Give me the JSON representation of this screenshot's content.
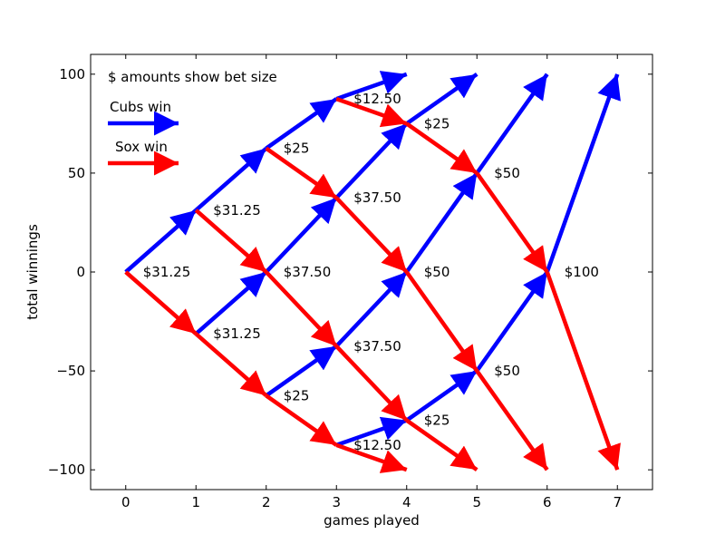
{
  "chart_data": {
    "type": "line",
    "title": "",
    "xlabel": "games played",
    "ylabel": "total winnings",
    "xlim": [
      -0.5,
      7.5
    ],
    "ylim": [
      -110,
      110
    ],
    "x_ticks": [
      0,
      1,
      2,
      3,
      4,
      5,
      6,
      7
    ],
    "y_ticks": [
      100,
      50,
      0,
      -50,
      -100
    ],
    "y_tick_labels": [
      "100",
      "50",
      "0",
      "−50",
      "−100"
    ],
    "grid": false,
    "note": "$ amounts show bet size",
    "legend": [
      {
        "label": "Cubs win",
        "color": "#0000ff"
      },
      {
        "label": "Sox win",
        "color": "#ff0000"
      }
    ],
    "series": [
      {
        "name": "Cubs win",
        "color": "#0000ff",
        "segments": [
          [
            [
              0,
              0
            ],
            [
              1,
              31.25
            ]
          ],
          [
            [
              1,
              31.25
            ],
            [
              2,
              62.5
            ]
          ],
          [
            [
              1,
              -31.25
            ],
            [
              2,
              0
            ]
          ],
          [
            [
              2,
              62.5
            ],
            [
              3,
              87.5
            ]
          ],
          [
            [
              2,
              0
            ],
            [
              3,
              37.5
            ]
          ],
          [
            [
              2,
              -62.5
            ],
            [
              3,
              -37.5
            ]
          ],
          [
            [
              3,
              87.5
            ],
            [
              4,
              100
            ]
          ],
          [
            [
              3,
              37.5
            ],
            [
              4,
              75
            ]
          ],
          [
            [
              3,
              -37.5
            ],
            [
              4,
              0
            ]
          ],
          [
            [
              3,
              -87.5
            ],
            [
              4,
              -75
            ]
          ],
          [
            [
              4,
              75
            ],
            [
              5,
              100
            ]
          ],
          [
            [
              4,
              0
            ],
            [
              5,
              50
            ]
          ],
          [
            [
              4,
              -75
            ],
            [
              5,
              -50
            ]
          ],
          [
            [
              5,
              50
            ],
            [
              6,
              100
            ]
          ],
          [
            [
              5,
              -50
            ],
            [
              6,
              0
            ]
          ],
          [
            [
              6,
              0
            ],
            [
              7,
              100
            ]
          ]
        ]
      },
      {
        "name": "Sox win",
        "color": "#ff0000",
        "segments": [
          [
            [
              0,
              0
            ],
            [
              1,
              -31.25
            ]
          ],
          [
            [
              1,
              31.25
            ],
            [
              2,
              0
            ]
          ],
          [
            [
              1,
              -31.25
            ],
            [
              2,
              -62.5
            ]
          ],
          [
            [
              2,
              62.5
            ],
            [
              3,
              37.5
            ]
          ],
          [
            [
              2,
              0
            ],
            [
              3,
              -37.5
            ]
          ],
          [
            [
              2,
              -62.5
            ],
            [
              3,
              -87.5
            ]
          ],
          [
            [
              3,
              87.5
            ],
            [
              4,
              75
            ]
          ],
          [
            [
              3,
              37.5
            ],
            [
              4,
              0
            ]
          ],
          [
            [
              3,
              -37.5
            ],
            [
              4,
              -75
            ]
          ],
          [
            [
              3,
              -87.5
            ],
            [
              4,
              -100
            ]
          ],
          [
            [
              4,
              75
            ],
            [
              5,
              50
            ]
          ],
          [
            [
              4,
              0
            ],
            [
              5,
              -50
            ]
          ],
          [
            [
              4,
              -75
            ],
            [
              5,
              -100
            ]
          ],
          [
            [
              5,
              50
            ],
            [
              6,
              0
            ]
          ],
          [
            [
              5,
              -50
            ],
            [
              6,
              -100
            ]
          ],
          [
            [
              6,
              0
            ],
            [
              7,
              -100
            ]
          ]
        ]
      }
    ],
    "bet_labels": [
      {
        "x": 0,
        "y": 0,
        "text": "$31.25"
      },
      {
        "x": 1,
        "y": 31.25,
        "text": "$31.25"
      },
      {
        "x": 1,
        "y": -31.25,
        "text": "$31.25"
      },
      {
        "x": 2,
        "y": 62.5,
        "text": "$25"
      },
      {
        "x": 2,
        "y": 0,
        "text": "$37.50"
      },
      {
        "x": 2,
        "y": -62.5,
        "text": "$25"
      },
      {
        "x": 3,
        "y": 87.5,
        "text": "$12.50"
      },
      {
        "x": 3,
        "y": 37.5,
        "text": "$37.50"
      },
      {
        "x": 3,
        "y": -37.5,
        "text": "$37.50"
      },
      {
        "x": 3,
        "y": -87.5,
        "text": "$12.50"
      },
      {
        "x": 4,
        "y": 75,
        "text": "$25"
      },
      {
        "x": 4,
        "y": 0,
        "text": "$50"
      },
      {
        "x": 4,
        "y": -75,
        "text": "$25"
      },
      {
        "x": 5,
        "y": 50,
        "text": "$50"
      },
      {
        "x": 5,
        "y": -50,
        "text": "$50"
      },
      {
        "x": 6,
        "y": 0,
        "text": "$100"
      }
    ]
  }
}
